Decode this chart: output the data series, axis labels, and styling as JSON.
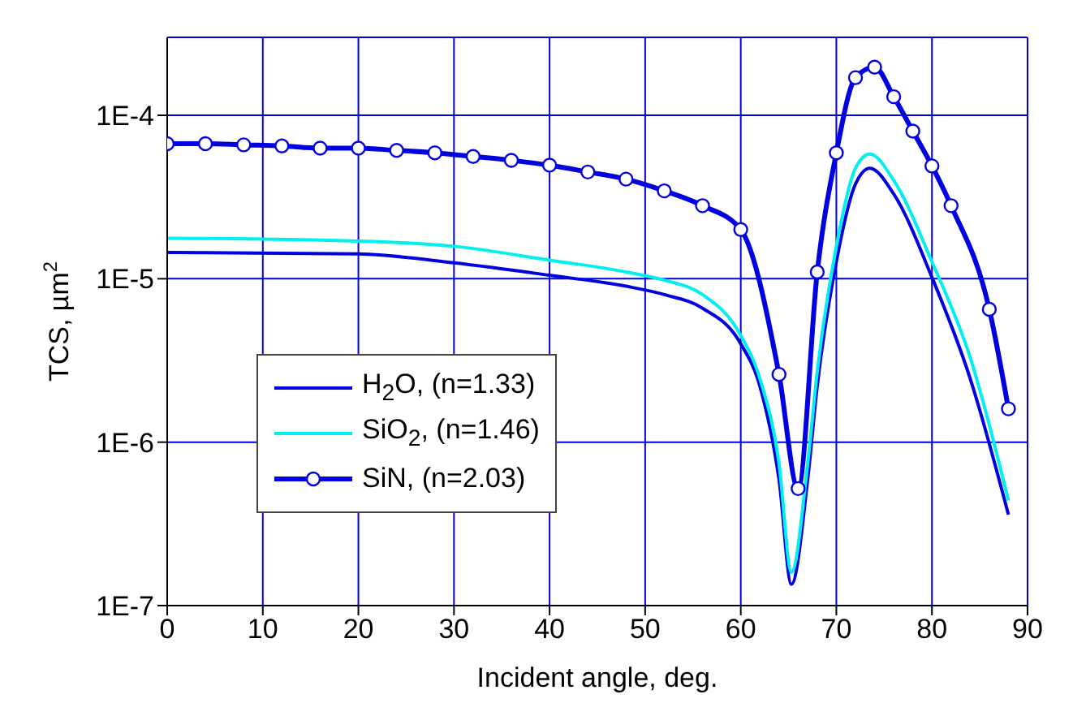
{
  "chart_data": {
    "type": "line",
    "xlabel": "Incident angle, deg.",
    "ylabel": "TCS, µm$^{2}$",
    "log": "y",
    "grid": true,
    "legend": "bottom left",
    "line_style": "solid",
    "xlim": [
      0,
      90
    ],
    "xticks": [
      0,
      10,
      20,
      30,
      40,
      50,
      60,
      70,
      80,
      90
    ],
    "ylim": [
      1e-07,
      0.0003
    ],
    "yticks": [
      {
        "value": 1e-07,
        "label": "1E-7"
      },
      {
        "value": 1e-06,
        "label": "1E-6"
      },
      {
        "value": 1e-05,
        "label": "1E-5"
      },
      {
        "value": 0.0001,
        "label": "1E-4"
      }
    ],
    "series": [
      {
        "name": "H$_{2}$O, (n=1.33)",
        "color": "#0000e0",
        "marker": "none",
        "x": [
          0,
          20,
          30,
          40,
          48,
          52,
          56,
          60,
          62,
          64,
          65.3,
          67,
          68,
          70,
          72,
          73.5,
          76,
          80,
          84,
          88
        ],
        "values": [
          1.45e-05,
          1.42e-05,
          1.25e-05,
          1.05e-05,
          9e-06,
          8e-06,
          6.6e-06,
          4e-06,
          2.2e-06,
          5.9e-07,
          1.35e-07,
          5.9e-07,
          2.2e-06,
          1.27e-05,
          3.8e-05,
          4.75e-05,
          3.3e-05,
          1.02e-05,
          2.45e-06,
          3.6e-07
        ]
      },
      {
        "name": "SiO$_{2}$, (n=1.46)",
        "color": "#00f0f0",
        "marker": "none",
        "x": [
          0,
          20,
          30,
          40,
          48,
          52,
          56,
          60,
          62,
          64,
          65.3,
          67,
          68,
          70,
          72,
          73.5,
          76,
          80,
          84,
          88
        ],
        "values": [
          1.77e-05,
          1.7e-05,
          1.58e-05,
          1.3e-05,
          1.1e-05,
          9.8e-06,
          8e-06,
          4.5e-06,
          2.45e-06,
          7.4e-07,
          1.6e-07,
          7.4e-07,
          2.7e-06,
          1.58e-05,
          4.75e-05,
          5.8e-05,
          4e-05,
          1.27e-05,
          3.3e-06,
          4.4e-07
        ]
      },
      {
        "name": "SiN,  (n=2.03)",
        "color": "#0000e0",
        "marker": "circle",
        "x": [
          0,
          4,
          8,
          12,
          16,
          20,
          24,
          28,
          32,
          36,
          40,
          44,
          48,
          52,
          56,
          60,
          64,
          66,
          68,
          70,
          72,
          74,
          76,
          78,
          80,
          82,
          86,
          88
        ],
        "values": [
          6.7e-05,
          6.7e-05,
          6.6e-05,
          6.5e-05,
          6.3e-05,
          6.3e-05,
          6.1e-05,
          5.9e-05,
          5.6e-05,
          5.3e-05,
          4.95e-05,
          4.5e-05,
          4.07e-05,
          3.45e-05,
          2.8e-05,
          2e-05,
          2.6e-06,
          5.2e-07,
          1.1e-05,
          5.9e-05,
          0.00017,
          0.000197,
          0.00013,
          8e-05,
          4.9e-05,
          2.8e-05,
          6.5e-06,
          1.6e-06
        ]
      }
    ]
  }
}
